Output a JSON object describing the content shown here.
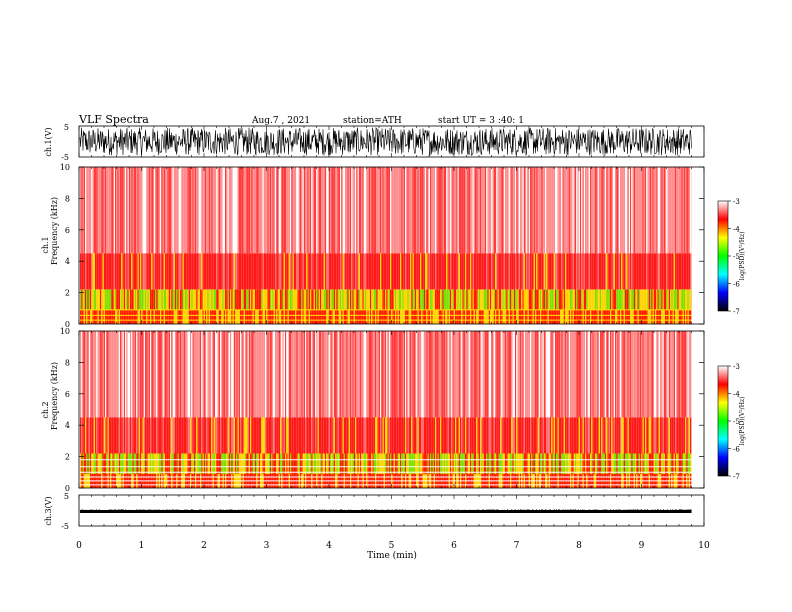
{
  "header": {
    "title": "VLF Spectra",
    "date": "Aug.7 , 2021",
    "station": "station=ATH",
    "start_ut": "start UT = 3 :40: 1"
  },
  "panels": {
    "ch1_wave": {
      "ylabel": "ch.1(V)",
      "ticks": [
        "5",
        "-5"
      ]
    },
    "ch1_spec": {
      "ylabel_top": "ch.1",
      "ylabel": "Frequency (kHz)",
      "ticks": [
        "10",
        "8",
        "6",
        "4",
        "2",
        "0"
      ]
    },
    "ch2_spec": {
      "ylabel_top": "ch.2",
      "ylabel": "Frequency (kHz)",
      "ticks": [
        "10",
        "8",
        "6",
        "4",
        "2",
        "0"
      ]
    },
    "ch3_wave": {
      "ylabel": "ch.3(V)",
      "ticks": [
        "5",
        "-5"
      ]
    }
  },
  "colorbar": {
    "label": "log(PSD)(V²/Hz)",
    "ticks": [
      "-3",
      "-4",
      "-5",
      "-6",
      "-7"
    ],
    "colors": [
      "#ffffff",
      "#ff0000",
      "#ffff00",
      "#00ff00",
      "#00ffff",
      "#0000ff",
      "#000000"
    ]
  },
  "x_axis": {
    "label": "Time (min)",
    "ticks": [
      "0",
      "1",
      "2",
      "3",
      "4",
      "5",
      "6",
      "7",
      "8",
      "9",
      "10"
    ]
  },
  "chart_data": {
    "type": "heatmap",
    "x_range_min": [
      0,
      10
    ],
    "data_extent_min": 9.8,
    "frequency_range_khz": [
      0,
      10
    ],
    "waveform_range_v": [
      -5,
      5
    ],
    "color_range_log_psd": [
      -7,
      -3
    ],
    "ch1_amplitude_v": 4.5,
    "ch3_amplitude_v": 0.3
  }
}
